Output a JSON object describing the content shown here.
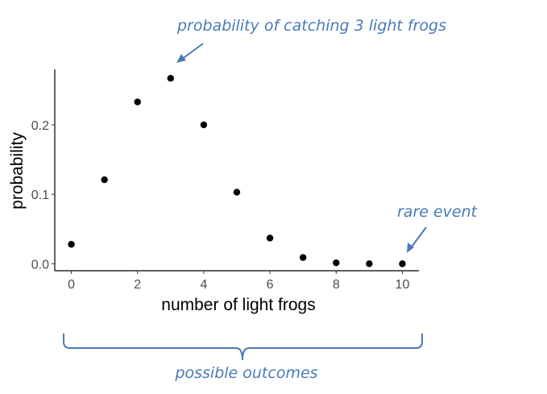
{
  "chart_data": {
    "type": "scatter",
    "title": "",
    "xlabel": "number of light frogs",
    "ylabel": "probability",
    "xlim": [
      -0.5,
      10.5
    ],
    "ylim": [
      -0.01,
      0.28
    ],
    "x_ticks": [
      0,
      2,
      4,
      6,
      8,
      10
    ],
    "x_tick_labels": [
      "0",
      "2",
      "4",
      "6",
      "8",
      "10"
    ],
    "y_ticks": [
      0.0,
      0.1,
      0.2
    ],
    "y_tick_labels": [
      "0.0",
      "0.1",
      "0.2"
    ],
    "grid": false,
    "points": [
      {
        "x": 0,
        "y": 0.028
      },
      {
        "x": 1,
        "y": 0.121
      },
      {
        "x": 2,
        "y": 0.233
      },
      {
        "x": 3,
        "y": 0.267
      },
      {
        "x": 4,
        "y": 0.2
      },
      {
        "x": 5,
        "y": 0.103
      },
      {
        "x": 6,
        "y": 0.037
      },
      {
        "x": 7,
        "y": 0.009
      },
      {
        "x": 8,
        "y": 0.0014
      },
      {
        "x": 9,
        "y": 0.0001
      },
      {
        "x": 10,
        "y": 0.0
      }
    ],
    "point_color": "#000000",
    "annotation_color": "#4a7ab7",
    "annotations": {
      "peak": "probability of catching 3 light frogs",
      "rare": "rare event",
      "outcomes": "possible outcomes"
    }
  }
}
